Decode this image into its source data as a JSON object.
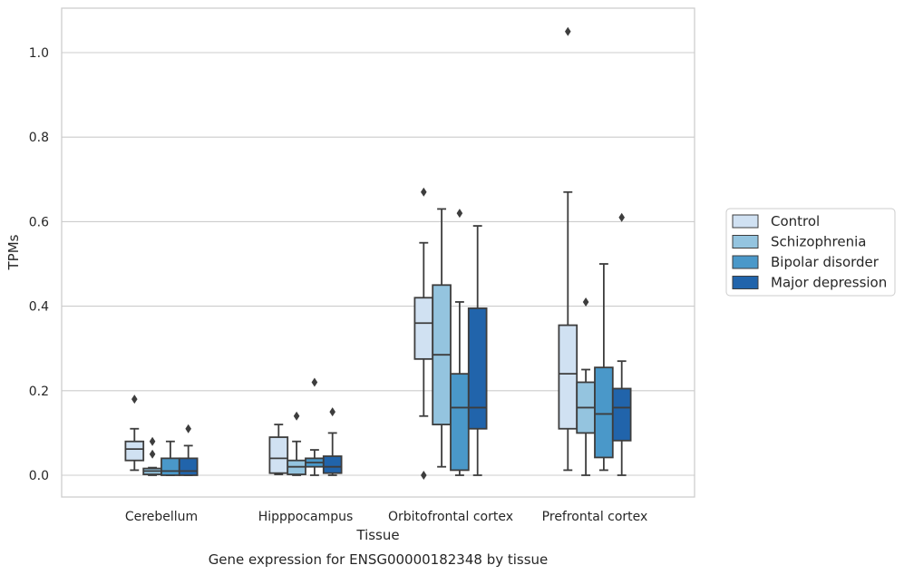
{
  "chart_data": {
    "type": "box",
    "title": "",
    "caption": "Gene expression for ENSG00000182348 by tissue",
    "xlabel": "Tissue",
    "ylabel": "TPMs",
    "ylim": [
      -0.05,
      1.1
    ],
    "yticks": [
      0.0,
      0.2,
      0.4,
      0.6,
      0.8,
      1.0
    ],
    "ytick_labels": [
      "0.0",
      "0.2",
      "0.4",
      "0.6",
      "0.8",
      "1.0"
    ],
    "grid": true,
    "legend_position": "right",
    "categories": [
      "Cerebellum",
      "Hipppocampus",
      "Orbitofrontal cortex",
      "Prefrontal cortex"
    ],
    "series": [
      {
        "name": "Control",
        "color": "#d0e1f2",
        "boxes": [
          {
            "whisker_low": 0.012,
            "q1": 0.035,
            "median": 0.062,
            "q3": 0.08,
            "whisker_high": 0.11,
            "outliers": [
              0.18
            ]
          },
          {
            "whisker_low": 0.002,
            "q1": 0.005,
            "median": 0.04,
            "q3": 0.09,
            "whisker_high": 0.12,
            "outliers": []
          },
          {
            "whisker_low": 0.14,
            "q1": 0.275,
            "median": 0.36,
            "q3": 0.42,
            "whisker_high": 0.55,
            "outliers": [
              0.67,
              0.0
            ]
          },
          {
            "whisker_low": 0.012,
            "q1": 0.11,
            "median": 0.24,
            "q3": 0.355,
            "whisker_high": 0.67,
            "outliers": [
              1.05
            ]
          }
        ]
      },
      {
        "name": "Schizophrenia",
        "color": "#94c4df",
        "boxes": [
          {
            "whisker_low": 0.0,
            "q1": 0.002,
            "median": 0.01,
            "q3": 0.016,
            "whisker_high": 0.018,
            "outliers": [
              0.08,
              0.05
            ]
          },
          {
            "whisker_low": 0.0,
            "q1": 0.002,
            "median": 0.02,
            "q3": 0.035,
            "whisker_high": 0.08,
            "outliers": [
              0.14
            ]
          },
          {
            "whisker_low": 0.02,
            "q1": 0.12,
            "median": 0.285,
            "q3": 0.45,
            "whisker_high": 0.63,
            "outliers": []
          },
          {
            "whisker_low": 0.0,
            "q1": 0.1,
            "median": 0.16,
            "q3": 0.22,
            "whisker_high": 0.25,
            "outliers": [
              0.41
            ]
          }
        ]
      },
      {
        "name": "Bipolar disorder",
        "color": "#4a98c9",
        "boxes": [
          {
            "whisker_low": 0.0,
            "q1": 0.0,
            "median": 0.01,
            "q3": 0.04,
            "whisker_high": 0.08,
            "outliers": []
          },
          {
            "whisker_low": 0.0,
            "q1": 0.02,
            "median": 0.03,
            "q3": 0.04,
            "whisker_high": 0.06,
            "outliers": [
              0.22
            ]
          },
          {
            "whisker_low": 0.0,
            "q1": 0.012,
            "median": 0.16,
            "q3": 0.24,
            "whisker_high": 0.41,
            "outliers": [
              0.62
            ]
          },
          {
            "whisker_low": 0.012,
            "q1": 0.042,
            "median": 0.145,
            "q3": 0.255,
            "whisker_high": 0.5,
            "outliers": []
          }
        ]
      },
      {
        "name": "Major depression",
        "color": "#2164ab",
        "boxes": [
          {
            "whisker_low": 0.0,
            "q1": 0.0,
            "median": 0.01,
            "q3": 0.04,
            "whisker_high": 0.07,
            "outliers": [
              0.11
            ]
          },
          {
            "whisker_low": 0.0,
            "q1": 0.005,
            "median": 0.02,
            "q3": 0.045,
            "whisker_high": 0.1,
            "outliers": [
              0.15
            ]
          },
          {
            "whisker_low": 0.0,
            "q1": 0.11,
            "median": 0.16,
            "q3": 0.395,
            "whisker_high": 0.59,
            "outliers": []
          },
          {
            "whisker_low": 0.0,
            "q1": 0.082,
            "median": 0.16,
            "q3": 0.205,
            "whisker_high": 0.27,
            "outliers": [
              0.61
            ]
          }
        ]
      }
    ]
  }
}
